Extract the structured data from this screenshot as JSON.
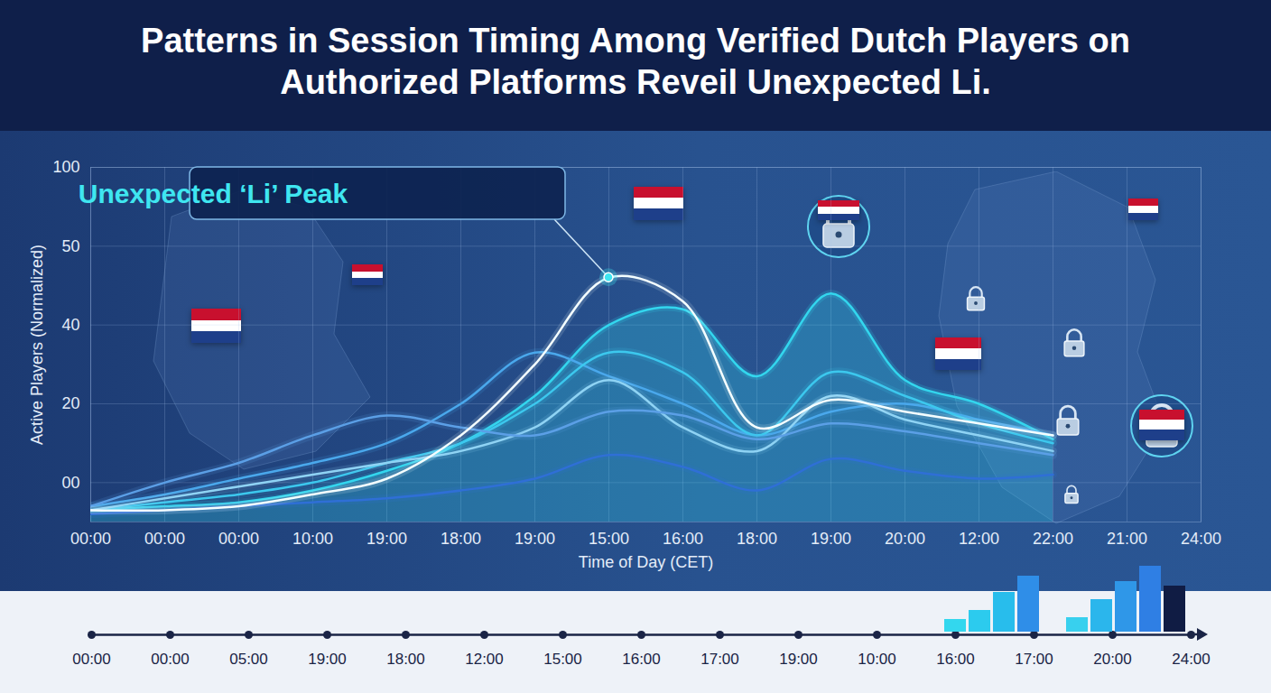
{
  "chart_data": [
    {
      "type": "line",
      "title": "Patterns in Session Timing Among Verified Dutch Players on Authorized Platforms Reveil Unexpected Li.",
      "x_label": "Time of Day (CET)",
      "y_label": "Active Players (Normalized)",
      "categories": [
        "00:00",
        "00:00",
        "00:00",
        "10:00",
        "19:00",
        "18:00",
        "19:00",
        "15:00",
        "16:00",
        "18:00",
        "19:00",
        "20:00",
        "12:00",
        "22:00",
        "21:00",
        "24:00"
      ],
      "series": [
        {
          "color": "#33d6ee",
          "type": "area",
          "values": [
            -7,
            -6,
            -5,
            -2,
            3,
            10,
            22,
            40,
            42,
            27,
            44,
            26,
            20,
            11,
            null,
            null
          ]
        },
        {
          "color": "#4aa8ec",
          "values": [
            -6,
            -3,
            1,
            5,
            10,
            20,
            33,
            27,
            20,
            12,
            18,
            20,
            16,
            12,
            null,
            null
          ]
        },
        {
          "color": "#3cc8ee",
          "values": [
            -7,
            -5,
            -3,
            0,
            5,
            10,
            20,
            33,
            28,
            12,
            28,
            22,
            15,
            10,
            null,
            null
          ]
        },
        {
          "color": "#8fd3f4",
          "values": [
            -7,
            -4,
            -1,
            2,
            5,
            8,
            14,
            26,
            14,
            8,
            22,
            16,
            12,
            8,
            null,
            null
          ]
        },
        {
          "color": "#5b9fe6",
          "values": [
            -6,
            0,
            5,
            12,
            17,
            14,
            12,
            18,
            17,
            11,
            15,
            13,
            10,
            7,
            null,
            null
          ]
        },
        {
          "color": "#2f6fd6",
          "values": [
            -8,
            -7,
            -6,
            -5,
            -4,
            -2,
            1,
            7,
            4,
            -2,
            6,
            3,
            1,
            2,
            null,
            null
          ]
        },
        {
          "color": "#f4feff",
          "values": [
            -7,
            -7,
            -6,
            -3,
            1,
            12,
            30,
            46,
            43,
            14,
            21,
            18,
            15,
            12,
            null,
            null
          ]
        }
      ],
      "ylim": [
        -10,
        100
      ],
      "yticks": [
        {
          "value": 0,
          "label": "00"
        },
        20,
        40,
        50,
        100
      ],
      "grid": true,
      "annotations": [
        {
          "text": "Unexpected ‘Li’ Peak",
          "x": "15:00",
          "y": 46
        }
      ]
    },
    {
      "type": "timeline",
      "categories": [
        "00:00",
        "00:00",
        "05:00",
        "19:00",
        "18:00",
        "12:00",
        "15:00",
        "16:00",
        "17:00",
        "19:00",
        "10:00",
        "16:00",
        "17:00",
        "20:00",
        "24:00"
      ]
    },
    {
      "type": "bar",
      "categories": [
        null,
        null,
        null,
        null,
        null,
        null,
        null,
        null,
        null,
        null
      ],
      "values": [
        14,
        24,
        44,
        62,
        null,
        16,
        36,
        56,
        73,
        51
      ],
      "colors": [
        "#33d7ee",
        "#2ccbee",
        "#28bdec",
        "#2f8ee8",
        null,
        "#38d0ee",
        "#2bb6ec",
        "#2f97e8",
        "#2f7fe4",
        "#101c44"
      ],
      "ylim": [
        0,
        80
      ],
      "tick_labels": false
    }
  ]
}
